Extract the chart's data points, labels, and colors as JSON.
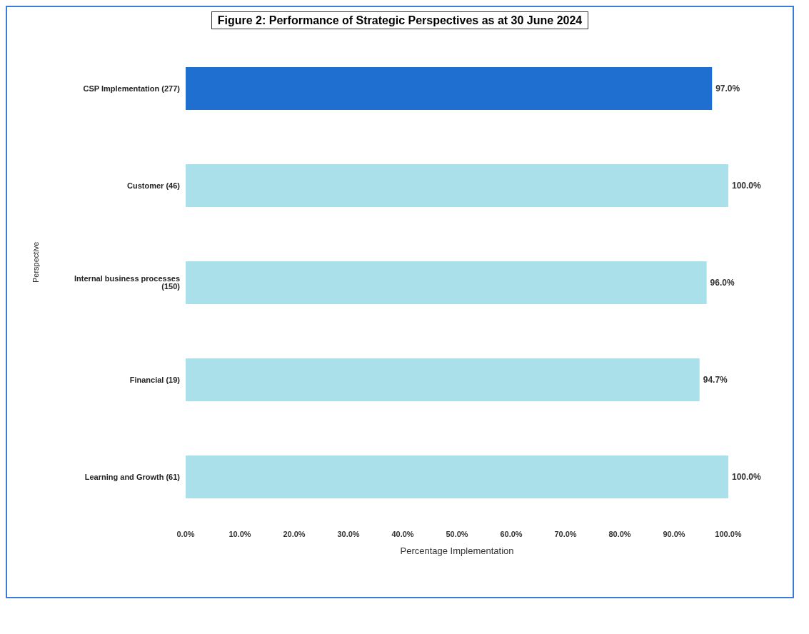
{
  "chart_data": {
    "type": "bar",
    "orientation": "horizontal",
    "title": "Figure 2: Performance of Strategic Perspectives as at  30 June 2024",
    "xlabel": "Percentage  Implementation",
    "ylabel": "Perspective",
    "categories": [
      "CSP Implementation (277)",
      "Customer (46)",
      "Internal business processes (150)",
      "Financial (19)",
      "Learning and Growth (61)"
    ],
    "values": [
      97.0,
      100.0,
      96.0,
      94.7,
      100.0
    ],
    "colors": [
      "#1f6fd0",
      "#a9e0ea",
      "#a9e0ea",
      "#a9e0ea",
      "#a9e0ea"
    ],
    "value_labels": [
      "97.0%",
      "100.0%",
      "96.0%",
      "94.7%",
      "100.0%"
    ],
    "xlim": [
      0,
      100
    ],
    "xticks": [
      {
        "value": 0,
        "label": "0.0%"
      },
      {
        "value": 10,
        "label": "10.0%"
      },
      {
        "value": 20,
        "label": "20.0%"
      },
      {
        "value": 30,
        "label": "30.0%"
      },
      {
        "value": 40,
        "label": "40.0%"
      },
      {
        "value": 50,
        "label": "50.0%"
      },
      {
        "value": 60,
        "label": "60.0%"
      },
      {
        "value": 70,
        "label": "70.0%"
      },
      {
        "value": 80,
        "label": "80.0%"
      },
      {
        "value": 90,
        "label": "90.0%"
      },
      {
        "value": 100,
        "label": "100.0%"
      }
    ],
    "grid": false,
    "legend": false
  }
}
